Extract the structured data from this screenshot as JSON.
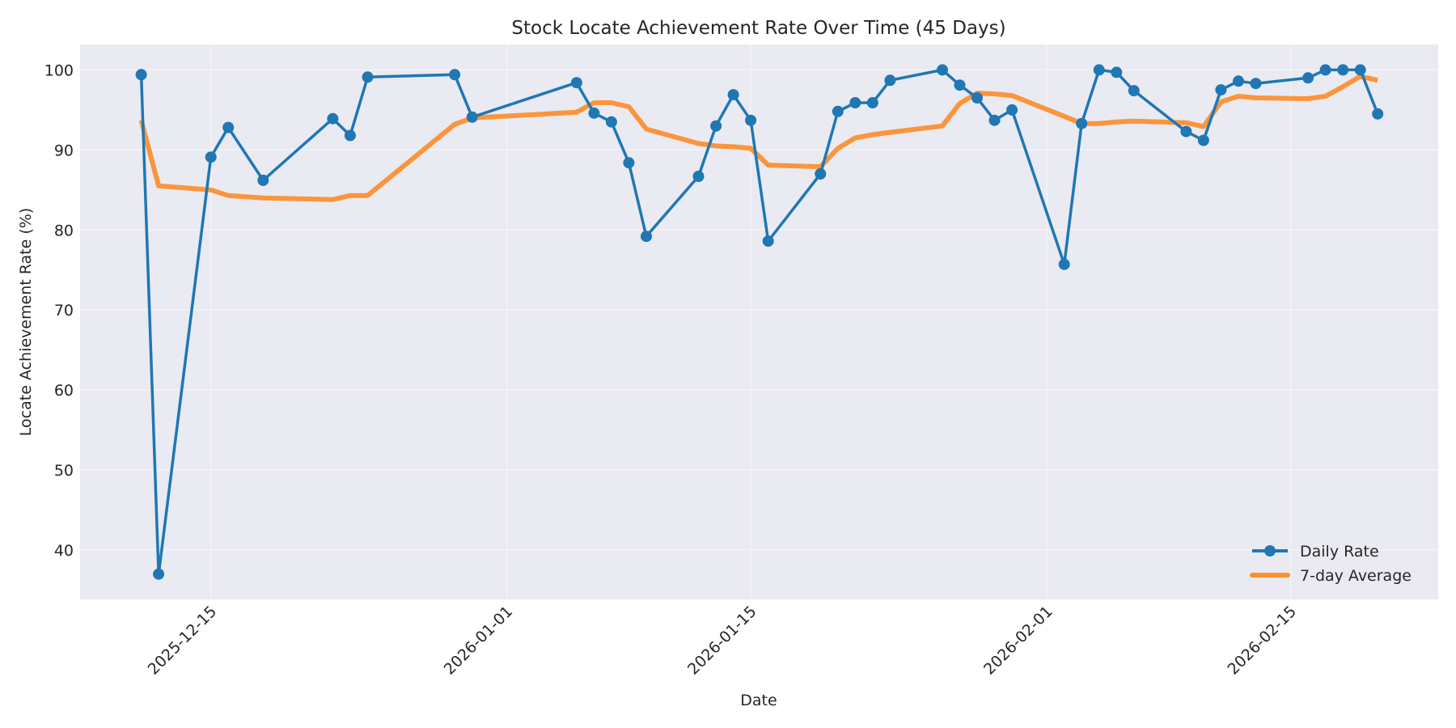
{
  "chart_data": {
    "type": "line",
    "title": "Stock Locate Achievement Rate Over Time (45 Days)",
    "xlabel": "Date",
    "ylabel": "Locate Achievement Rate (%)",
    "ylim": [
      34.8,
      103.2
    ],
    "yticks": [
      40,
      50,
      60,
      70,
      80,
      90,
      100
    ],
    "xticks": [
      "2025-12-15",
      "2026-01-01",
      "2026-01-15",
      "2026-02-01",
      "2026-02-15"
    ],
    "xlim": [
      "2025-12-07",
      "2026-02-23"
    ],
    "grid": true,
    "legend_position": "lower right",
    "x": [
      "2025-12-11",
      "2025-12-12",
      "2025-12-15",
      "2025-12-16",
      "2025-12-18",
      "2025-12-22",
      "2025-12-23",
      "2025-12-24",
      "2025-12-29",
      "2025-12-30",
      "2026-01-05",
      "2026-01-06",
      "2026-01-07",
      "2026-01-08",
      "2026-01-09",
      "2026-01-12",
      "2026-01-13",
      "2026-01-14",
      "2026-01-15",
      "2026-01-16",
      "2026-01-19",
      "2026-01-20",
      "2026-01-21",
      "2026-01-22",
      "2026-01-23",
      "2026-01-26",
      "2026-01-27",
      "2026-01-28",
      "2026-01-29",
      "2026-01-30",
      "2026-02-02",
      "2026-02-03",
      "2026-02-04",
      "2026-02-05",
      "2026-02-06",
      "2026-02-09",
      "2026-02-10",
      "2026-02-11",
      "2026-02-12",
      "2026-02-13",
      "2026-02-16",
      "2026-02-17",
      "2026-02-18",
      "2026-02-19",
      "2026-02-20"
    ],
    "series": [
      {
        "name": "Daily Rate",
        "color": "#1f77b4",
        "marker": "circle",
        "values": [
          99.4,
          37.0,
          89.1,
          92.8,
          86.2,
          93.9,
          91.8,
          99.1,
          99.4,
          94.1,
          98.4,
          94.6,
          93.5,
          88.4,
          79.2,
          86.7,
          93.0,
          96.9,
          93.7,
          78.6,
          87.0,
          94.8,
          95.9,
          95.9,
          98.7,
          100.0,
          98.1,
          96.5,
          93.7,
          95.0,
          75.7,
          93.3,
          100.0,
          99.7,
          97.4,
          92.3,
          91.2,
          97.5,
          98.6,
          98.3,
          99.0,
          100.0,
          100.0,
          100.0,
          94.5
        ]
      },
      {
        "name": "7-day Average",
        "color": "#ff7f0e",
        "marker": "none",
        "values": [
          93.7,
          85.5,
          85.0,
          84.3,
          84.0,
          83.8,
          84.3,
          84.3,
          93.2,
          94.0,
          94.7,
          95.9,
          95.9,
          95.4,
          92.6,
          90.8,
          90.5,
          90.4,
          90.2,
          88.1,
          87.9,
          90.2,
          91.5,
          91.9,
          92.2,
          93.0,
          95.8,
          97.1,
          97.0,
          96.8,
          94.2,
          93.3,
          93.3,
          93.5,
          93.6,
          93.4,
          92.9,
          96.0,
          96.7,
          96.5,
          96.4,
          96.7,
          97.9,
          99.2,
          98.7
        ]
      }
    ]
  },
  "colors": {
    "plot_background": "#eaeaf2",
    "grid": "#f5f5f8",
    "text": "#262626"
  }
}
